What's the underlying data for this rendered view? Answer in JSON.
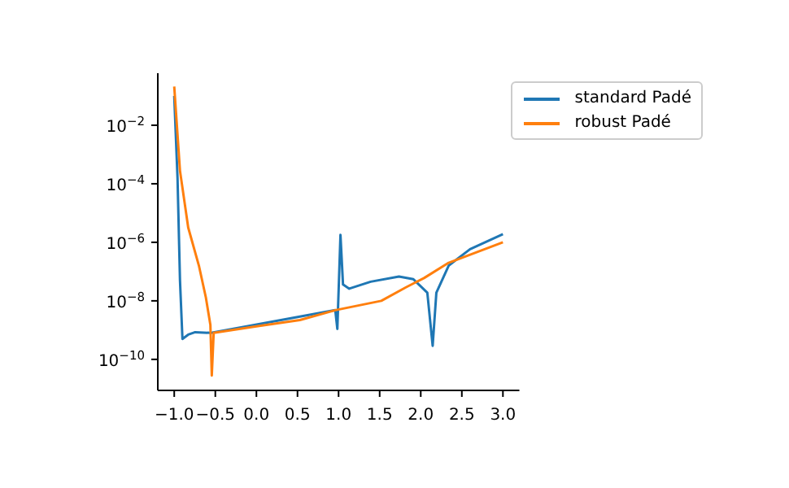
{
  "chart_data": {
    "type": "line",
    "log": "y",
    "legend": "top right",
    "xlim": [
      -1.2,
      3.2
    ],
    "xticks": [
      {
        "value": -1,
        "label": "−1.0"
      },
      {
        "value": -0.5,
        "label": "−0.5"
      },
      {
        "value": 0,
        "label": "0.0"
      },
      {
        "value": 0.5,
        "label": "0.5"
      },
      {
        "value": 1,
        "label": "1.0"
      },
      {
        "value": 1.5,
        "label": "1.5"
      },
      {
        "value": 2,
        "label": "2.0"
      },
      {
        "value": 2.5,
        "label": "2.5"
      },
      {
        "value": 3,
        "label": "3.0"
      }
    ],
    "ylim": [
      8.7e-12,
      0.6
    ],
    "yticks": [
      {
        "value": 1e-10,
        "label": "10$^{−10}$"
      },
      {
        "value": 1e-08,
        "label": "10$^{−8}$"
      },
      {
        "value": 1e-06,
        "label": "10$^{−6}$"
      },
      {
        "value": 0.0001,
        "label": "10$^{−4}$"
      },
      {
        "value": 0.01,
        "label": "10$^{−2}$"
      }
    ],
    "series": [
      {
        "name": "standard Padé",
        "color": "#1f77b4",
        "x": [
          -1.0,
          -0.96,
          -0.93,
          -0.9,
          -0.83,
          -0.745,
          -0.55,
          0.96,
          0.985,
          1.023,
          1.054,
          1.13,
          1.39,
          1.735,
          1.91,
          2.08,
          2.145,
          2.19,
          2.34,
          2.6,
          3.0
        ],
        "values": [
          0.1,
          0.00016,
          5e-08,
          5e-10,
          7e-10,
          8.5e-10,
          8e-10,
          4.8e-09,
          1.1e-09,
          1.8e-06,
          3.6e-08,
          2.6e-08,
          4.5e-08,
          6.8e-08,
          5.5e-08,
          1.9e-08,
          2.9e-10,
          1.9e-08,
          1.6e-07,
          5.8e-07,
          1.9e-06
        ]
      },
      {
        "name": "robust Padé",
        "color": "#ff7f0e",
        "x": [
          -1.0,
          -0.93,
          -0.83,
          -0.7,
          -0.615,
          -0.56,
          -0.543,
          -0.52,
          0.0,
          0.53,
          0.96,
          1.52,
          1.82,
          2.04,
          2.34,
          3.0
        ],
        "values": [
          0.21,
          0.00028,
          3.2e-06,
          1.6e-07,
          1.3e-08,
          1.5e-09,
          2.8e-11,
          8e-10,
          1.35e-09,
          2.2e-09,
          4.8e-09,
          1e-08,
          2.9e-08,
          6e-08,
          2e-07,
          1e-06
        ]
      }
    ]
  }
}
